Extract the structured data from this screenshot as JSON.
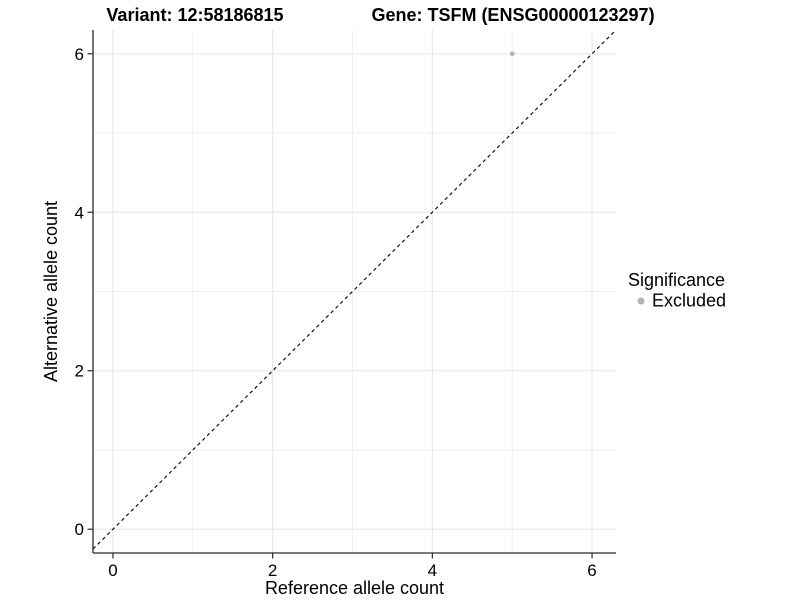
{
  "figure": {
    "background": "#ffffff"
  },
  "chart_data": {
    "type": "scatter",
    "title_left": "Variant: 12:58186815",
    "title_right": "Gene: TSFM (ENSG00000123297)",
    "xlabel": "Reference allele count",
    "ylabel": "Alternative allele count",
    "xlim": [
      -0.25,
      6.3
    ],
    "ylim": [
      -0.3,
      6.3
    ],
    "x_ticks": [
      0,
      2,
      4,
      6
    ],
    "y_ticks": [
      0,
      2,
      4,
      6
    ],
    "x_minor_gridlines": [
      1,
      3,
      5
    ],
    "y_minor_gridlines": [
      1,
      3,
      5
    ],
    "grid": true,
    "series": [
      {
        "name": "Excluded",
        "points": [
          {
            "x": 5,
            "y": 6
          }
        ]
      }
    ],
    "reference_line": {
      "kind": "identity",
      "slope": 1,
      "intercept": 0,
      "style": "dashed"
    },
    "legend": {
      "title": "Significance",
      "position": "right",
      "items": [
        {
          "label": "Excluded",
          "color": "#b3b3b3"
        }
      ]
    },
    "colors": {
      "point": "#b3b3b3",
      "reference_line": "#000000",
      "grid_major": "#e7e7e7",
      "grid_minor": "#efefef",
      "axis_line": "#2b2b2b",
      "tick_mark": "#2b2b2b",
      "tick_text": "#262626",
      "title_text": "#000000"
    }
  }
}
